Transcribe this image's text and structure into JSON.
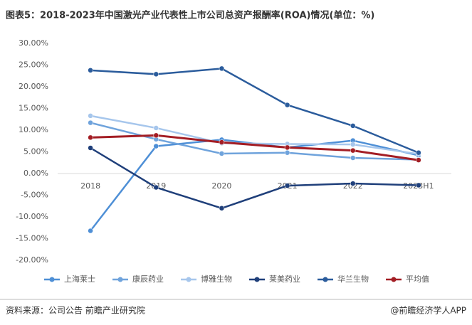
{
  "chart_data": {
    "type": "line",
    "title": "图表5：2018-2023年中国激光产业代表性上市公司总资产报酬率(ROA)情况(单位：%)",
    "source": "资料来源：公司公告 前瞻产业研究院",
    "credit": "@前瞻经济学人APP",
    "categories": [
      "2018",
      "2019",
      "2020",
      "2021",
      "2022",
      "2023H1"
    ],
    "series": [
      {
        "name": "上海莱士",
        "color": "#4e8fd6",
        "values": [
          -13.2,
          6.3,
          7.8,
          6.0,
          7.6,
          4.2
        ]
      },
      {
        "name": "康辰药业",
        "color": "#6fa3dc",
        "values": [
          11.7,
          7.9,
          4.6,
          4.8,
          3.6,
          3.2
        ]
      },
      {
        "name": "博雅生物",
        "color": "#a6c6ec",
        "values": [
          13.3,
          10.5,
          7.0,
          6.8,
          6.7,
          4.5
        ]
      },
      {
        "name": "莱美药业",
        "color": "#1f3f7a",
        "values": [
          5.9,
          -3.2,
          -8.0,
          -2.8,
          -2.3,
          -2.7
        ]
      },
      {
        "name": "华兰生物",
        "color": "#2b5c9c",
        "values": [
          23.8,
          22.9,
          24.2,
          15.8,
          11.0,
          4.8
        ]
      },
      {
        "name": "平均值",
        "color": "#a31d24",
        "values": [
          8.3,
          8.8,
          7.2,
          6.0,
          5.3,
          3.1
        ]
      }
    ],
    "ylim": [
      -20,
      30
    ],
    "yticks": [
      {
        "value": 30,
        "label": "30.00%"
      },
      {
        "value": 25,
        "label": "25.00%"
      },
      {
        "value": 20,
        "label": "20.00%"
      },
      {
        "value": 15,
        "label": "15.00%"
      },
      {
        "value": 10,
        "label": "10.00%"
      },
      {
        "value": 5,
        "label": "5.00%"
      },
      {
        "value": 0,
        "label": "0.00%"
      },
      {
        "value": -5,
        "label": "-5.00%"
      },
      {
        "value": -10,
        "label": "-10.00%"
      },
      {
        "value": -15,
        "label": "-15.00%"
      },
      {
        "value": -20,
        "label": "-20.00%"
      }
    ],
    "grid": false
  }
}
